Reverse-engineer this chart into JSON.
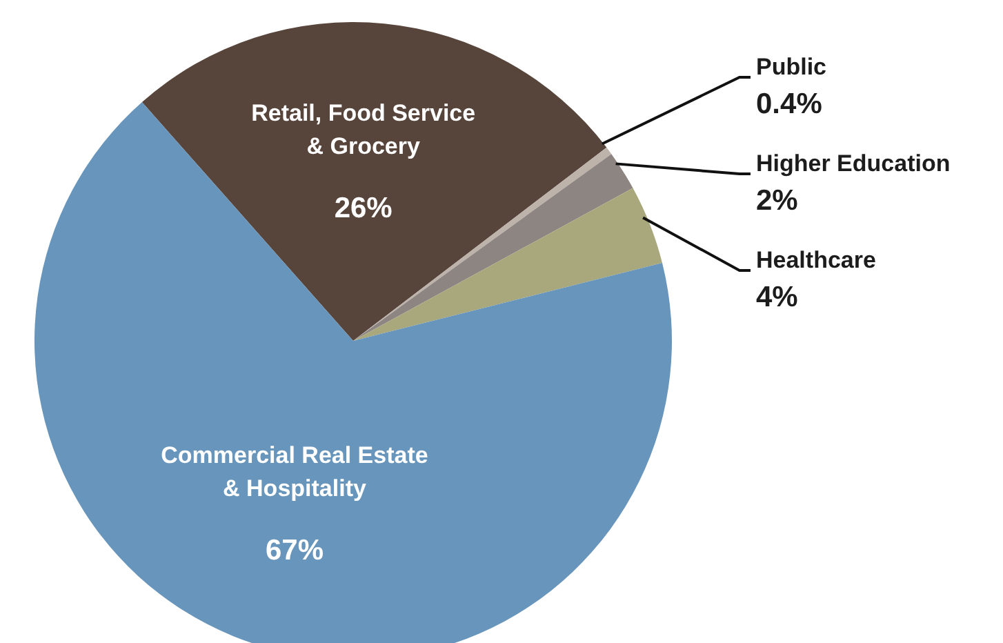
{
  "chart_data": {
    "type": "pie",
    "categories": [
      "Retail, Food Service & Grocery",
      "Public",
      "Higher Education",
      "Healthcare",
      "Commercial Real Estate & Hospitality"
    ],
    "values": [
      26,
      0.4,
      2,
      4,
      67
    ],
    "value_labels": [
      "26%",
      "0.4%",
      "2%",
      "4%",
      "67%"
    ],
    "colors": [
      "#57443b",
      "#bdb3ab",
      "#8d8581",
      "#a9a77c",
      "#6895bb"
    ]
  }
}
